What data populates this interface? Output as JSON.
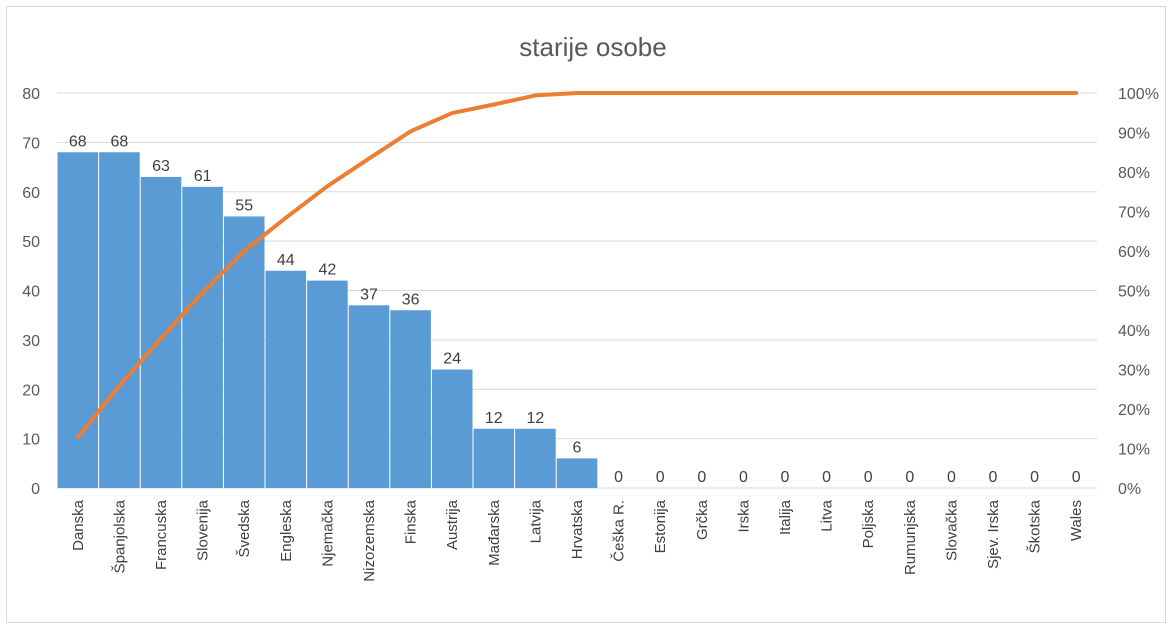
{
  "chart_data": {
    "type": "bar",
    "title": "starije osobe",
    "categories": [
      "Danska",
      "Španjolska",
      "Francuska",
      "Slovenija",
      "Švedska",
      "Engleska",
      "Njemačka",
      "Nizozemska",
      "Finska",
      "Austrija",
      "Mađarska",
      "Latvija",
      "Hrvatska",
      "Češka R.",
      "Estonija",
      "Grčka",
      "Irska",
      "Italija",
      "Litva",
      "Poljska",
      "Rumunjska",
      "Slovačka",
      "Sjev. Irska",
      "Škotska",
      "Wales"
    ],
    "series": [
      {
        "type": "bar",
        "color": "#5b9bd5",
        "values": [
          68,
          68,
          63,
          61,
          55,
          44,
          42,
          37,
          36,
          24,
          12,
          12,
          6,
          0,
          0,
          0,
          0,
          0,
          0,
          0,
          0,
          0,
          0,
          0,
          0
        ],
        "labels": [
          "68",
          "68",
          "63",
          "61",
          "55",
          "44",
          "42",
          "37",
          "36",
          "24",
          "12",
          "12",
          "6",
          "0",
          "0",
          "0",
          "0",
          "0",
          "0",
          "0",
          "0",
          "0",
          "0",
          "0",
          "0"
        ]
      },
      {
        "type": "line",
        "color": "#ed7d31",
        "axis": "right",
        "values": [
          0.129,
          0.259,
          0.379,
          0.495,
          0.6,
          0.684,
          0.764,
          0.834,
          0.903,
          0.949,
          0.971,
          0.994,
          1.0,
          1.0,
          1.0,
          1.0,
          1.0,
          1.0,
          1.0,
          1.0,
          1.0,
          1.0,
          1.0,
          1.0,
          1.0
        ]
      }
    ],
    "y_left": {
      "ylim": [
        0,
        80
      ],
      "ticks": [
        "0",
        "10",
        "20",
        "30",
        "40",
        "50",
        "60",
        "70",
        "80"
      ]
    },
    "y_right": {
      "ylim": [
        0,
        1
      ],
      "ticks": [
        "0%",
        "10%",
        "20%",
        "30%",
        "40%",
        "50%",
        "60%",
        "70%",
        "80%",
        "90%",
        "100%"
      ]
    },
    "grid": true,
    "legend": "none"
  }
}
